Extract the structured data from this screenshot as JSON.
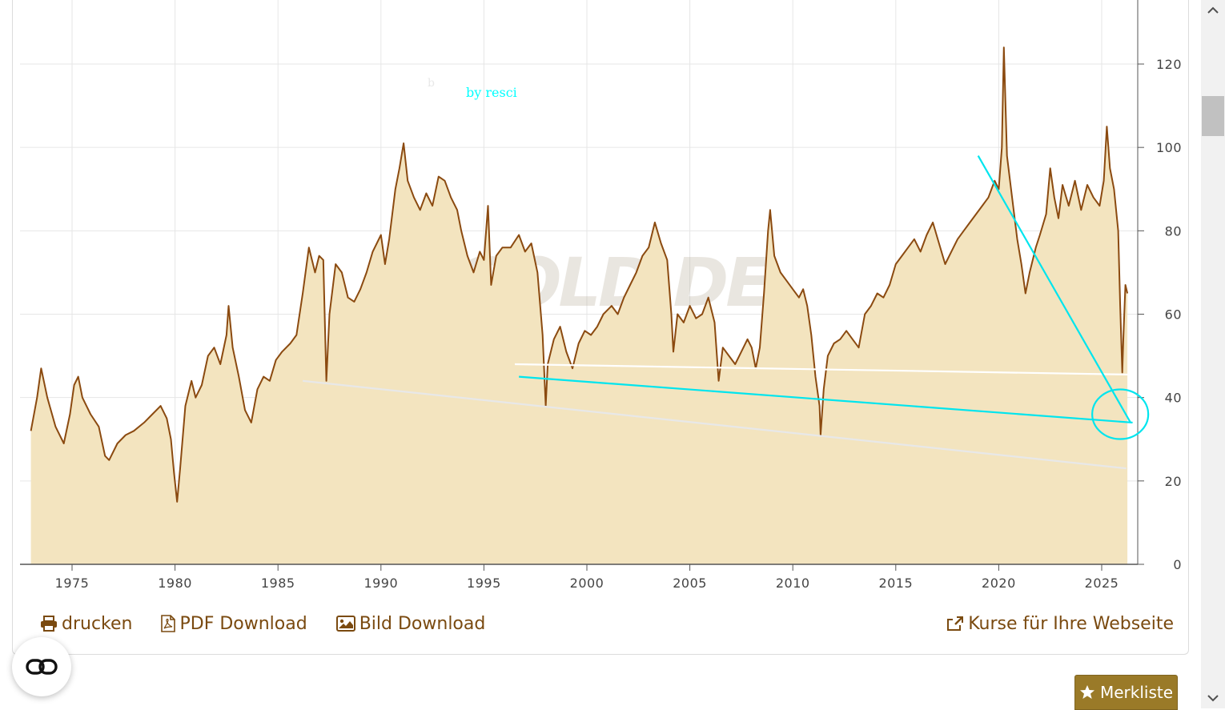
{
  "chart_data": {
    "type": "area",
    "title": "",
    "xlabel": "",
    "ylabel": "",
    "xlim": [
      1973,
      2026.5
    ],
    "ylim": [
      0,
      130
    ],
    "x_ticks": [
      "1975",
      "1980",
      "1985",
      "1990",
      "1995",
      "2000",
      "2005",
      "2010",
      "2015",
      "2020",
      "2025"
    ],
    "y_ticks": [
      "0",
      "20",
      "40",
      "60",
      "80",
      "100",
      "120"
    ],
    "grid": true,
    "y_axis_position": "right",
    "series": [
      {
        "color": "#8b4a10",
        "fill": "#f3e4bf",
        "points": [
          [
            1973.0,
            32
          ],
          [
            1973.3,
            40
          ],
          [
            1973.5,
            47
          ],
          [
            1973.8,
            40
          ],
          [
            1974.2,
            33
          ],
          [
            1974.6,
            29
          ],
          [
            1974.9,
            36
          ],
          [
            1975.1,
            43
          ],
          [
            1975.3,
            45
          ],
          [
            1975.5,
            40
          ],
          [
            1975.9,
            36
          ],
          [
            1976.3,
            33
          ],
          [
            1976.6,
            26
          ],
          [
            1976.8,
            25
          ],
          [
            1977.2,
            29
          ],
          [
            1977.6,
            31
          ],
          [
            1978.0,
            32
          ],
          [
            1978.5,
            34
          ],
          [
            1978.9,
            36
          ],
          [
            1979.3,
            38
          ],
          [
            1979.6,
            35
          ],
          [
            1979.8,
            30
          ],
          [
            1979.95,
            22
          ],
          [
            1980.1,
            15
          ],
          [
            1980.25,
            23
          ],
          [
            1980.5,
            38
          ],
          [
            1980.8,
            44
          ],
          [
            1981.0,
            40
          ],
          [
            1981.3,
            43
          ],
          [
            1981.6,
            50
          ],
          [
            1981.9,
            52
          ],
          [
            1982.2,
            48
          ],
          [
            1982.5,
            55
          ],
          [
            1982.6,
            62
          ],
          [
            1982.8,
            52
          ],
          [
            1983.1,
            45
          ],
          [
            1983.4,
            37
          ],
          [
            1983.7,
            34
          ],
          [
            1984.0,
            42
          ],
          [
            1984.3,
            45
          ],
          [
            1984.6,
            44
          ],
          [
            1984.9,
            49
          ],
          [
            1985.2,
            51
          ],
          [
            1985.6,
            53
          ],
          [
            1985.9,
            55
          ],
          [
            1986.2,
            65
          ],
          [
            1986.5,
            76
          ],
          [
            1986.8,
            70
          ],
          [
            1987.0,
            74
          ],
          [
            1987.2,
            73
          ],
          [
            1987.35,
            44
          ],
          [
            1987.5,
            60
          ],
          [
            1987.8,
            72
          ],
          [
            1988.1,
            70
          ],
          [
            1988.4,
            64
          ],
          [
            1988.7,
            63
          ],
          [
            1989.0,
            66
          ],
          [
            1989.3,
            70
          ],
          [
            1989.6,
            75
          ],
          [
            1990.0,
            79
          ],
          [
            1990.2,
            72
          ],
          [
            1990.4,
            78
          ],
          [
            1990.7,
            90
          ],
          [
            1990.9,
            95
          ],
          [
            1991.1,
            101
          ],
          [
            1991.3,
            92
          ],
          [
            1991.6,
            88
          ],
          [
            1991.9,
            85
          ],
          [
            1992.2,
            89
          ],
          [
            1992.5,
            86
          ],
          [
            1992.8,
            93
          ],
          [
            1993.1,
            92
          ],
          [
            1993.4,
            88
          ],
          [
            1993.7,
            85
          ],
          [
            1993.9,
            80
          ],
          [
            1994.2,
            74
          ],
          [
            1994.5,
            70
          ],
          [
            1994.8,
            75
          ],
          [
            1995.0,
            73
          ],
          [
            1995.2,
            86
          ],
          [
            1995.35,
            67
          ],
          [
            1995.6,
            74
          ],
          [
            1995.9,
            76
          ],
          [
            1996.3,
            76
          ],
          [
            1996.7,
            79
          ],
          [
            1997.0,
            75
          ],
          [
            1997.3,
            77
          ],
          [
            1997.6,
            70
          ],
          [
            1997.85,
            55
          ],
          [
            1998.0,
            38
          ],
          [
            1998.1,
            48
          ],
          [
            1998.4,
            54
          ],
          [
            1998.7,
            57
          ],
          [
            1999.0,
            51
          ],
          [
            1999.3,
            47
          ],
          [
            1999.6,
            53
          ],
          [
            1999.9,
            56
          ],
          [
            2000.2,
            55
          ],
          [
            2000.5,
            57
          ],
          [
            2000.8,
            60
          ],
          [
            2001.2,
            62
          ],
          [
            2001.5,
            60
          ],
          [
            2001.8,
            64
          ],
          [
            2002.1,
            67
          ],
          [
            2002.4,
            70
          ],
          [
            2002.7,
            74
          ],
          [
            2003.0,
            76
          ],
          [
            2003.3,
            82
          ],
          [
            2003.6,
            77
          ],
          [
            2003.9,
            73
          ],
          [
            2004.1,
            60
          ],
          [
            2004.2,
            51
          ],
          [
            2004.4,
            60
          ],
          [
            2004.7,
            58
          ],
          [
            2005.0,
            62
          ],
          [
            2005.3,
            59
          ],
          [
            2005.6,
            60
          ],
          [
            2005.9,
            64
          ],
          [
            2006.2,
            58
          ],
          [
            2006.4,
            44
          ],
          [
            2006.6,
            52
          ],
          [
            2006.9,
            50
          ],
          [
            2007.2,
            48
          ],
          [
            2007.5,
            51
          ],
          [
            2007.8,
            54
          ],
          [
            2008.0,
            52
          ],
          [
            2008.2,
            47
          ],
          [
            2008.4,
            52
          ],
          [
            2008.6,
            65
          ],
          [
            2008.8,
            80
          ],
          [
            2008.9,
            85
          ],
          [
            2009.1,
            74
          ],
          [
            2009.4,
            70
          ],
          [
            2009.7,
            68
          ],
          [
            2010.0,
            66
          ],
          [
            2010.3,
            64
          ],
          [
            2010.5,
            66
          ],
          [
            2010.7,
            62
          ],
          [
            2010.9,
            55
          ],
          [
            2011.1,
            45
          ],
          [
            2011.3,
            38
          ],
          [
            2011.35,
            31
          ],
          [
            2011.5,
            42
          ],
          [
            2011.7,
            50
          ],
          [
            2012.0,
            53
          ],
          [
            2012.3,
            54
          ],
          [
            2012.6,
            56
          ],
          [
            2012.9,
            54
          ],
          [
            2013.2,
            52
          ],
          [
            2013.5,
            60
          ],
          [
            2013.8,
            62
          ],
          [
            2014.1,
            65
          ],
          [
            2014.4,
            64
          ],
          [
            2014.7,
            67
          ],
          [
            2015.0,
            72
          ],
          [
            2015.3,
            74
          ],
          [
            2015.6,
            76
          ],
          [
            2015.9,
            78
          ],
          [
            2016.2,
            75
          ],
          [
            2016.5,
            79
          ],
          [
            2016.8,
            82
          ],
          [
            2017.1,
            77
          ],
          [
            2017.4,
            72
          ],
          [
            2017.7,
            75
          ],
          [
            2018.0,
            78
          ],
          [
            2018.3,
            80
          ],
          [
            2018.6,
            82
          ],
          [
            2018.9,
            84
          ],
          [
            2019.2,
            86
          ],
          [
            2019.5,
            88
          ],
          [
            2019.8,
            92
          ],
          [
            2020.0,
            90
          ],
          [
            2020.15,
            100
          ],
          [
            2020.25,
            124
          ],
          [
            2020.4,
            98
          ],
          [
            2020.6,
            90
          ],
          [
            2020.9,
            78
          ],
          [
            2021.1,
            72
          ],
          [
            2021.3,
            65
          ],
          [
            2021.5,
            70
          ],
          [
            2021.8,
            76
          ],
          [
            2022.0,
            79
          ],
          [
            2022.3,
            84
          ],
          [
            2022.5,
            95
          ],
          [
            2022.7,
            88
          ],
          [
            2022.9,
            83
          ],
          [
            2023.1,
            91
          ],
          [
            2023.4,
            86
          ],
          [
            2023.7,
            92
          ],
          [
            2024.0,
            85
          ],
          [
            2024.3,
            91
          ],
          [
            2024.6,
            88
          ],
          [
            2024.9,
            86
          ],
          [
            2025.1,
            92
          ],
          [
            2025.25,
            105
          ],
          [
            2025.4,
            95
          ],
          [
            2025.6,
            90
          ],
          [
            2025.8,
            80
          ],
          [
            2025.9,
            62
          ],
          [
            2026.0,
            46
          ],
          [
            2026.05,
            54
          ],
          [
            2026.15,
            67
          ],
          [
            2026.25,
            65
          ]
        ]
      }
    ],
    "annotations": {
      "text": "by resci",
      "text_color": "#00ffff",
      "stray_label": "b",
      "lines": [
        {
          "color": "#ffffff",
          "from": [
            1996.5,
            48
          ],
          "to": [
            2026.5,
            45.5
          ]
        },
        {
          "color": "#e8e8e8",
          "from": [
            1986.2,
            44
          ],
          "to": [
            2026.2,
            23
          ]
        },
        {
          "color": "#00e5ee",
          "from": [
            1996.7,
            45
          ],
          "to": [
            2026.5,
            34
          ]
        },
        {
          "color": "#00e5ee",
          "from": [
            2019.0,
            98
          ],
          "to": [
            2026.4,
            34
          ]
        }
      ],
      "circle": {
        "color": "#00e5ee",
        "center": [
          2025.9,
          36
        ]
      }
    },
    "watermark": "GOLD.DE"
  },
  "toolbar": {
    "print_label": "drucken",
    "pdf_label": "PDF Download",
    "image_label": "Bild Download",
    "embed_label": "Kurse für Ihre Webseite"
  },
  "merkliste_label": "Merkliste",
  "colors": {
    "accent": "#7a4a10",
    "button": "#9a7a28"
  }
}
